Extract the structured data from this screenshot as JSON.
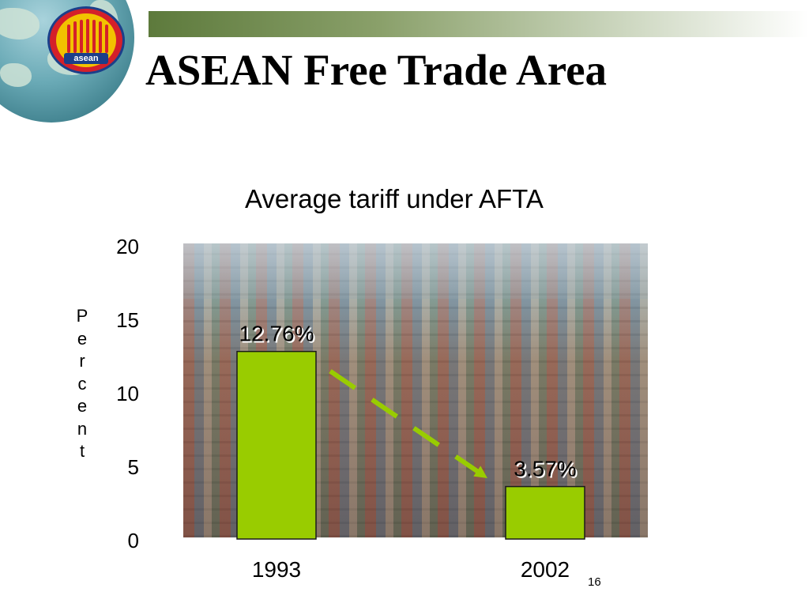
{
  "slide": {
    "title": "ASEAN Free Trade Area",
    "number": "16",
    "logo_text": "asean"
  },
  "chart_data": {
    "type": "bar",
    "title": "Average tariff under AFTA",
    "categories": [
      "1993",
      "2002"
    ],
    "values": [
      12.76,
      3.57
    ],
    "data_labels": [
      "12.76%",
      "3.57%"
    ],
    "ylabel": "Percent",
    "xlabel": "",
    "ylim": [
      0,
      20
    ],
    "yticks": [
      "0",
      "5",
      "10",
      "15",
      "20"
    ],
    "yticks_values": [
      0,
      5,
      10,
      15,
      20
    ],
    "grid": false,
    "bar_color": "#99cc00",
    "trend_arrow_color": "#99cc00",
    "background": "photo of container port"
  }
}
